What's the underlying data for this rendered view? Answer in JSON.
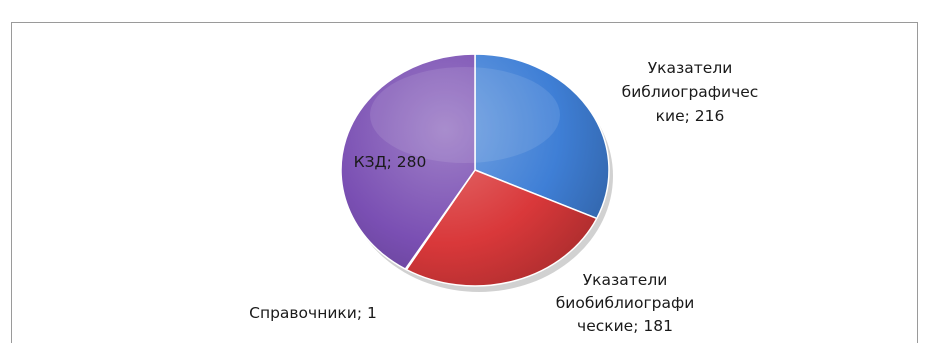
{
  "chart_data": {
    "type": "pie",
    "title": "",
    "slices": [
      {
        "label": "Указатели библиографические",
        "value": 216,
        "color": "#3f7fd6",
        "label_lines": [
          "Указатели",
          "библиографичес",
          "кие; 216"
        ]
      },
      {
        "label": "Указатели биобиблиографические",
        "value": 181,
        "color": "#d9383a",
        "label_lines": [
          "Указатели",
          "биобиблиографи",
          "ческие; 181"
        ]
      },
      {
        "label": "Справочники",
        "value": 1,
        "color": "#8fb24a",
        "label_lines": [
          "Справочники; 1"
        ]
      },
      {
        "label": "КЗД",
        "value": 280,
        "color": "#7a4fb3",
        "label_lines": [
          "КЗД; 280"
        ]
      }
    ],
    "legend": "none",
    "start_angle": "12 o'clock, clockwise"
  }
}
